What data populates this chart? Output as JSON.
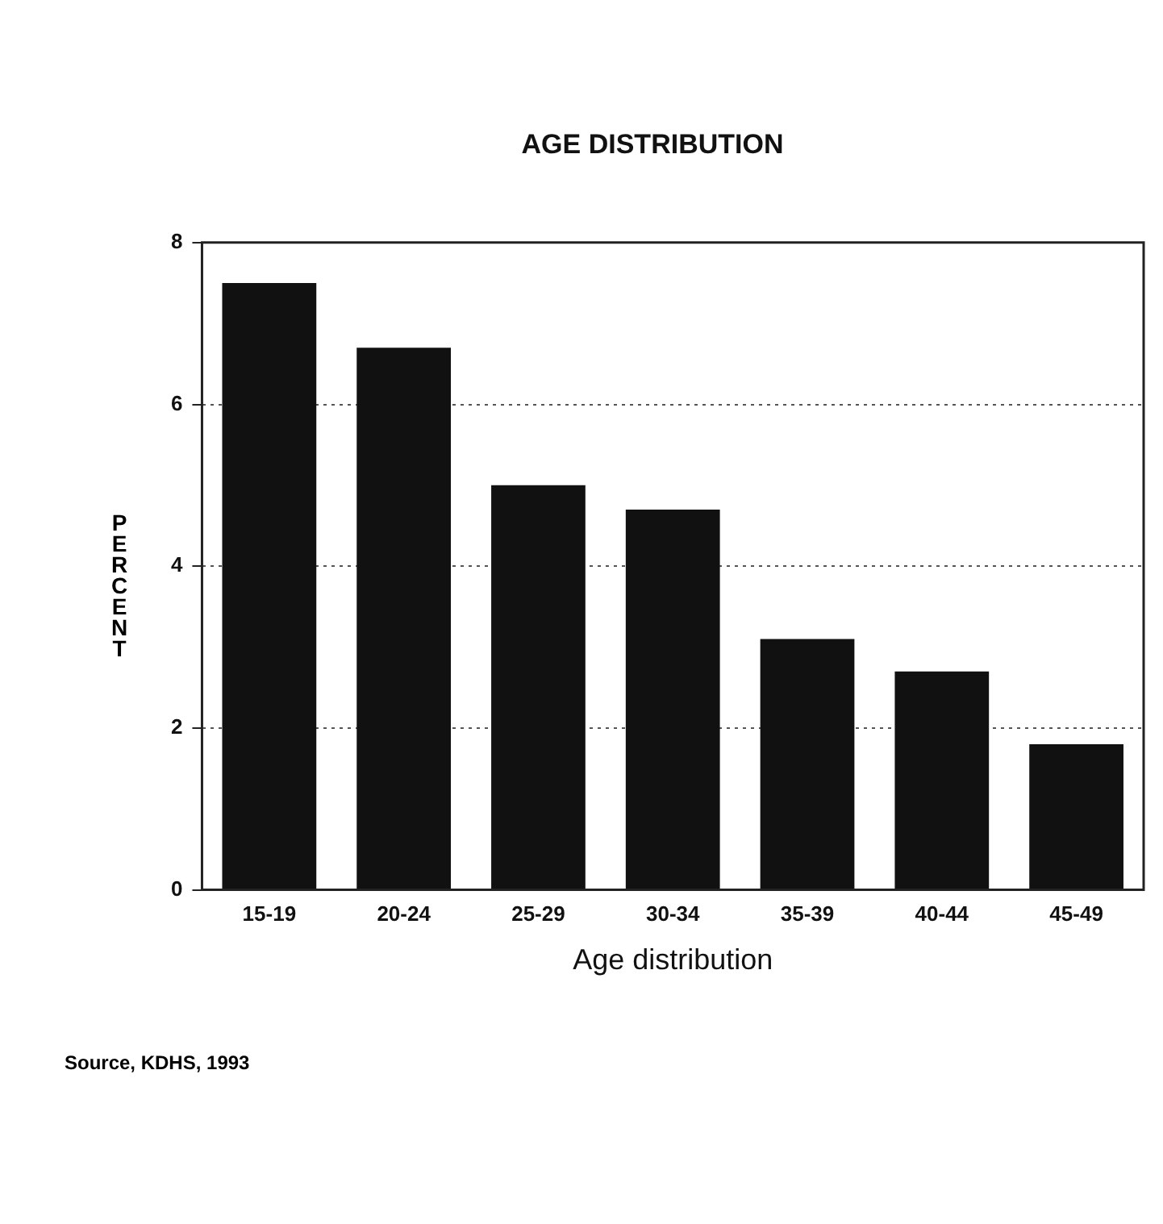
{
  "chart_data": {
    "type": "bar",
    "title": "AGE DISTRIBUTION",
    "xlabel": "Age distribution",
    "ylabel": "PERCENT",
    "categories": [
      "15-19",
      "20-24",
      "25-29",
      "30-34",
      "35-39",
      "40-44",
      "45-49"
    ],
    "values": [
      7.5,
      6.7,
      5.0,
      4.7,
      3.1,
      2.7,
      1.8
    ],
    "color": "#111111",
    "ylim": [
      0,
      8
    ],
    "yticks": [
      0,
      2,
      4,
      6,
      8
    ],
    "grid": "y",
    "legend": false,
    "annotations": [
      "Source, KDHS, 1993"
    ]
  }
}
